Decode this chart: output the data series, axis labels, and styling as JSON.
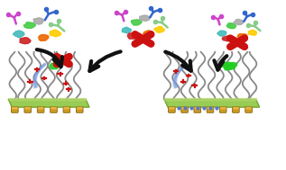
{
  "bg_color": "#ffffff",
  "figsize": [
    3.17,
    1.89
  ],
  "dpi": 100,
  "mol_colors": [
    "#cc44cc",
    "#44cc44",
    "#3366cc",
    "#ee6600",
    "#ffcc00",
    "#cc2222",
    "#44bbbb",
    "#aaaaaa",
    "#ff88ff",
    "#88cc88"
  ],
  "surface_green": "#99cc55",
  "surface_edge": "#77aa33",
  "anchor_gold": "#cc9922",
  "anchor_dark": "#886611",
  "polymer_color": "#888888",
  "red_x_color": "#cc1111",
  "green_blob": "#22cc22",
  "plus_color": "#cc1111",
  "arrow_color": "#111111",
  "blue_arc": "#7799dd",
  "blue_dot": "#5577cc"
}
